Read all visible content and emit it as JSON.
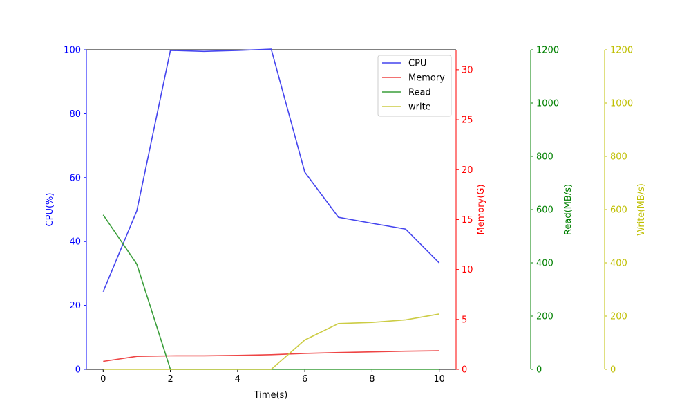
{
  "chart_data": {
    "type": "line",
    "x": [
      0,
      1,
      2,
      3,
      4,
      5,
      6,
      7,
      8,
      9,
      10
    ],
    "xlabel": "Time(s)",
    "xlim": [
      -0.5,
      10.5
    ],
    "xticks": [
      0,
      2,
      4,
      6,
      8,
      10
    ],
    "legend_position": "upper right",
    "grid": false,
    "axes": [
      {
        "id": "cpu",
        "side": "left",
        "label": "CPU(%)",
        "color": "#0000ff",
        "ylim": [
          0,
          100
        ],
        "ticks": [
          0,
          20,
          40,
          60,
          80,
          100
        ]
      },
      {
        "id": "mem",
        "side": "right",
        "label": "Memory(G)",
        "color": "#ff0000",
        "ylim": [
          0,
          32
        ],
        "ticks": [
          0,
          5,
          10,
          15,
          20,
          25,
          30
        ]
      },
      {
        "id": "read",
        "side": "right-offset-1",
        "label": "Read(MB/s)",
        "color": "#008000",
        "ylim": [
          0,
          1200
        ],
        "ticks": [
          0,
          200,
          400,
          600,
          800,
          1000,
          1200
        ]
      },
      {
        "id": "write",
        "side": "right-offset-2",
        "label": "Write(MB/s)",
        "color": "#bfbf00",
        "ylim": [
          0,
          1200
        ],
        "ticks": [
          0,
          200,
          400,
          600,
          800,
          1000,
          1200
        ]
      }
    ],
    "series": [
      {
        "name": "CPU",
        "axis": "cpu",
        "color": "#4444ee",
        "values": [
          24.3,
          49.6,
          99.8,
          99.5,
          99.8,
          100.2,
          61.7,
          47.6,
          45.7,
          43.9,
          33.3
        ]
      },
      {
        "name": "Memory",
        "axis": "mem",
        "color": "#ee4444",
        "values": [
          0.8,
          1.3,
          1.35,
          1.36,
          1.4,
          1.47,
          1.6,
          1.68,
          1.75,
          1.82,
          1.86
        ]
      },
      {
        "name": "Read",
        "axis": "read",
        "color": "#3a9e3a",
        "values": [
          580,
          395,
          0,
          0,
          0,
          0,
          0,
          0,
          0,
          0,
          0
        ]
      },
      {
        "name": "write",
        "axis": "write",
        "color": "#cccc44",
        "values": [
          0,
          0,
          0,
          0,
          0,
          0,
          110,
          172,
          176,
          186,
          208
        ]
      }
    ]
  }
}
